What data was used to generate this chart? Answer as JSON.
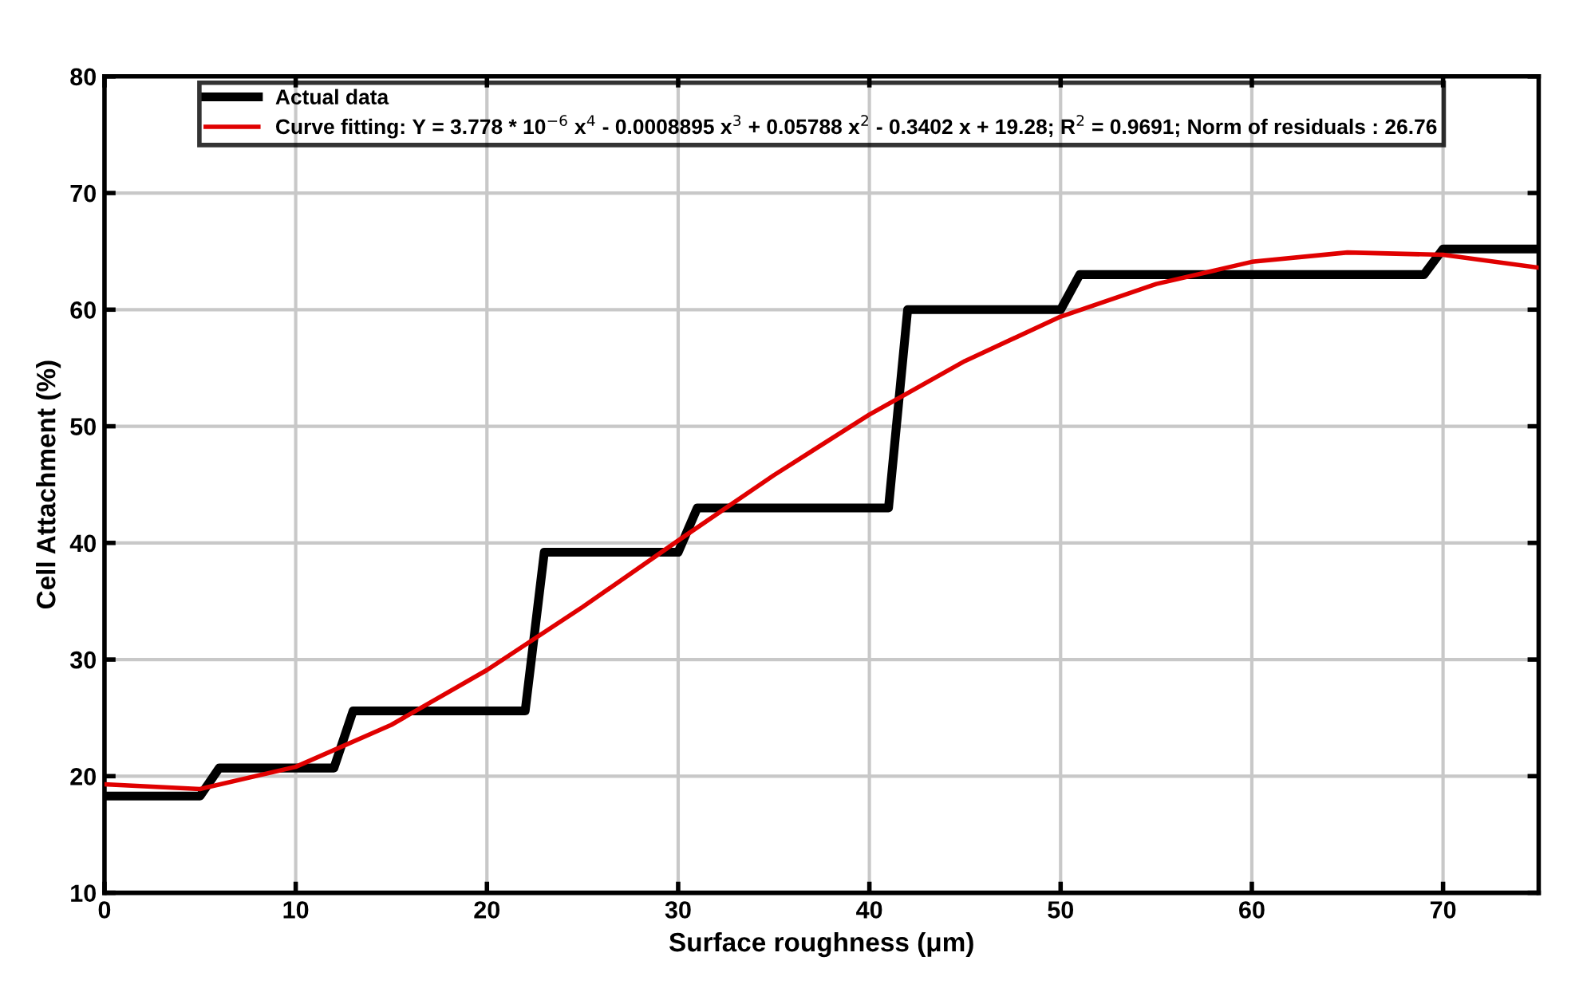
{
  "chart_data": {
    "type": "line",
    "xlabel": "Surface roughness (μm)",
    "ylabel": "Cell Attachment (%)",
    "xlim": [
      0,
      75
    ],
    "ylim": [
      10,
      80
    ],
    "xticks": [
      0,
      10,
      20,
      30,
      40,
      50,
      60,
      70
    ],
    "yticks": [
      10,
      20,
      30,
      40,
      50,
      60,
      70,
      80
    ],
    "grid": true,
    "legend": "top",
    "marker": "none",
    "line_style": "solid",
    "series": [
      {
        "name": "Actual data",
        "color": "#000000",
        "x": [
          0,
          5,
          6,
          12,
          13,
          22,
          23,
          30,
          31,
          41,
          42,
          50,
          51,
          69,
          70,
          75
        ],
        "values": [
          18.3,
          18.3,
          20.7,
          20.7,
          25.6,
          25.6,
          39.2,
          39.2,
          43,
          43,
          60,
          60,
          63,
          63,
          65.2,
          65.2
        ]
      },
      {
        "name": "Curve fitting: Y = 3.778 * 10$^{−6}$ x$^{4}$ - 0.0008895 x$^{3}$ + 0.05788 x$^{2}$ - 0.3402 x + 19.28; R$^{2}$ = 0.9691; Norm of residuals : 26.76",
        "color": "#e00000",
        "x": [
          0,
          5,
          10,
          15,
          20,
          25,
          30,
          35,
          40,
          45,
          50,
          55,
          60,
          65,
          70,
          75
        ],
        "values": [
          19.3,
          18.9,
          20.8,
          24.4,
          29.1,
          34.5,
          40.2,
          45.8,
          51,
          55.6,
          59.4,
          62.2,
          64.1,
          64.9,
          64.7,
          63.6
        ]
      }
    ]
  }
}
